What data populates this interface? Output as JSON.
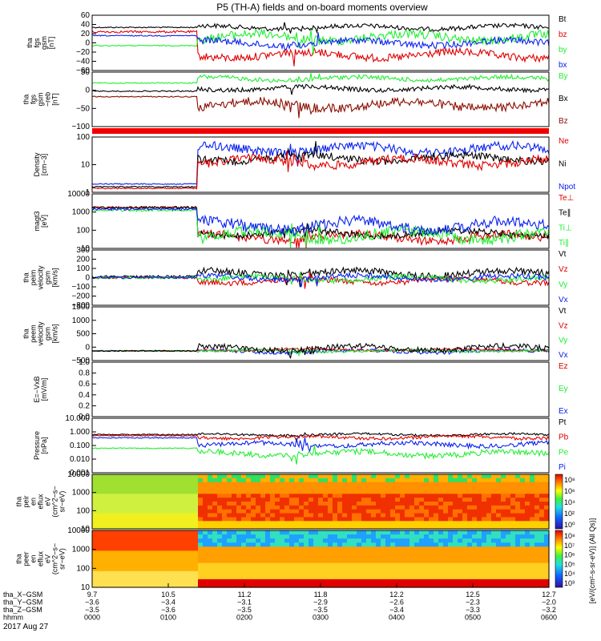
{
  "title": "P5 (TH-A) fields and on-board moments overview",
  "date": "2017 Aug 27",
  "colors": {
    "black": "#000000",
    "red": "#e00000",
    "green": "#22ee33",
    "blue": "#0a22ee",
    "brown": "#8b0d00"
  },
  "chart_data": [
    {
      "id": "fgs",
      "type": "line",
      "ylabel": [
        "tha",
        "fgs",
        "gsm",
        "[nT]"
      ],
      "yticks": [
        "60",
        "40",
        "20",
        "0",
        "−20",
        "−40",
        "−60"
      ],
      "legend": [
        {
          "name": "Bt",
          "color": "black"
        },
        {
          "name": "bz",
          "color": "red"
        },
        {
          "name": "by",
          "color": "green"
        },
        {
          "name": "bx",
          "color": "blue"
        }
      ]
    },
    {
      "id": "fgs_reb",
      "type": "line",
      "ylabel": [
        "tha",
        "fgs",
        "gsm",
        "−reb",
        "[nT]"
      ],
      "yticks": [
        "50",
        "0",
        "−50",
        "−100"
      ],
      "legend": [
        {
          "name": "By",
          "color": "green"
        },
        {
          "name": "Bx",
          "color": "black"
        },
        {
          "name": "Bz",
          "color": "brown"
        }
      ]
    },
    {
      "id": "density",
      "type": "line",
      "ylabel": [
        "Density",
        "[cm−3]"
      ],
      "yticks": [
        "100",
        "10",
        "1"
      ],
      "legend": [
        {
          "name": "Ne",
          "color": "red"
        },
        {
          "name": "Ni",
          "color": "black"
        },
        {
          "name": "Npot",
          "color": "blue"
        }
      ]
    },
    {
      "id": "temp",
      "type": "line",
      "ylabel": [
        "magt3",
        "[eV]"
      ],
      "yticks": [
        "10000",
        "1000",
        "100",
        "10"
      ],
      "legend": [
        {
          "name": "Te⊥",
          "color": "red"
        },
        {
          "name": "Te∥",
          "color": "black"
        },
        {
          "name": "Ti⊥",
          "color": "green"
        },
        {
          "name": "Ti∥",
          "color": "green"
        }
      ]
    },
    {
      "id": "vi",
      "type": "line",
      "ylabel": [
        "tha",
        "peim",
        "velocity",
        "gsm",
        "[km/s]"
      ],
      "yticks": [
        "300",
        "200",
        "100",
        "0",
        "−100",
        "−200",
        "−300"
      ],
      "legend": [
        {
          "name": "Vt",
          "color": "black"
        },
        {
          "name": "Vz",
          "color": "red"
        },
        {
          "name": "Vy",
          "color": "green"
        },
        {
          "name": "Vx",
          "color": "blue"
        }
      ]
    },
    {
      "id": "ve",
      "type": "line",
      "ylabel": [
        "tha",
        "peem",
        "velocity",
        "gsm",
        "[km/s]"
      ],
      "yticks": [
        "1500",
        "1000",
        "500",
        "0",
        "−500"
      ],
      "legend": [
        {
          "name": "Vt",
          "color": "black"
        },
        {
          "name": "Vz",
          "color": "red"
        },
        {
          "name": "Vy",
          "color": "green"
        },
        {
          "name": "Vx",
          "color": "blue"
        }
      ]
    },
    {
      "id": "efield",
      "type": "line",
      "ylabel": [
        "E=−VxB",
        "[mV/m]"
      ],
      "yticks": [
        "1.0",
        "0.8",
        "0.6",
        "0.4",
        "0.2",
        "0.0"
      ],
      "legend": [
        {
          "name": "Ez",
          "color": "red"
        },
        {
          "name": "Ey",
          "color": "green"
        },
        {
          "name": "Ex",
          "color": "blue"
        }
      ]
    },
    {
      "id": "pressure",
      "type": "line",
      "ylabel": [
        "Pressure",
        "[nPa]"
      ],
      "yticks": [
        "10.000",
        "1.000",
        "0.100",
        "0.010",
        "0.001"
      ],
      "legend": [
        {
          "name": "Pt",
          "color": "black"
        },
        {
          "name": "Pb",
          "color": "red"
        },
        {
          "name": "Pe",
          "color": "green"
        },
        {
          "name": "Pi",
          "color": "blue"
        }
      ]
    },
    {
      "id": "peir",
      "type": "heatmap",
      "ylabel": [
        "tha",
        "peir",
        "en",
        "eflux",
        "eV",
        "(cm^2−s−",
        "sr−eV)"
      ],
      "yticks": [
        "10000",
        "1000",
        "100",
        "10"
      ]
    },
    {
      "id": "peer",
      "type": "heatmap",
      "ylabel": [
        "tha",
        "peer",
        "en",
        "eflux",
        "eV",
        "(cm^2−s−",
        "sr−eV)"
      ],
      "yticks": [
        "10000",
        "1000",
        "100",
        "10"
      ]
    }
  ],
  "colorbar": {
    "ticks1": [
      "10⁸",
      "10⁶",
      "10⁴",
      "10²",
      "10⁰"
    ],
    "ticks2": [
      "10⁸",
      "10⁷",
      "10⁶",
      "10⁵",
      "10⁴",
      "10³"
    ],
    "label": "[eV/(cm²-s-sr-eV)] (All Qs)]"
  },
  "xaxis": {
    "rows": [
      {
        "label": "tha_X−GSM",
        "values": [
          "9.7",
          "10.5",
          "11.2",
          "11.8",
          "12.2",
          "12.5",
          "12.7"
        ]
      },
      {
        "label": "tha_Y−GSM",
        "values": [
          "−3.6",
          "−3.4",
          "−3.1",
          "−2.9",
          "−2.6",
          "−2.3",
          "−2.0"
        ]
      },
      {
        "label": "tha_Z−GSM",
        "values": [
          "−3.5",
          "−3.6",
          "−3.5",
          "−3.5",
          "−3.4",
          "−3.3",
          "−3.2"
        ]
      },
      {
        "label": "hhmm",
        "values": [
          "0000",
          "0100",
          "0200",
          "0300",
          "0400",
          "0500",
          "0600"
        ]
      }
    ]
  }
}
